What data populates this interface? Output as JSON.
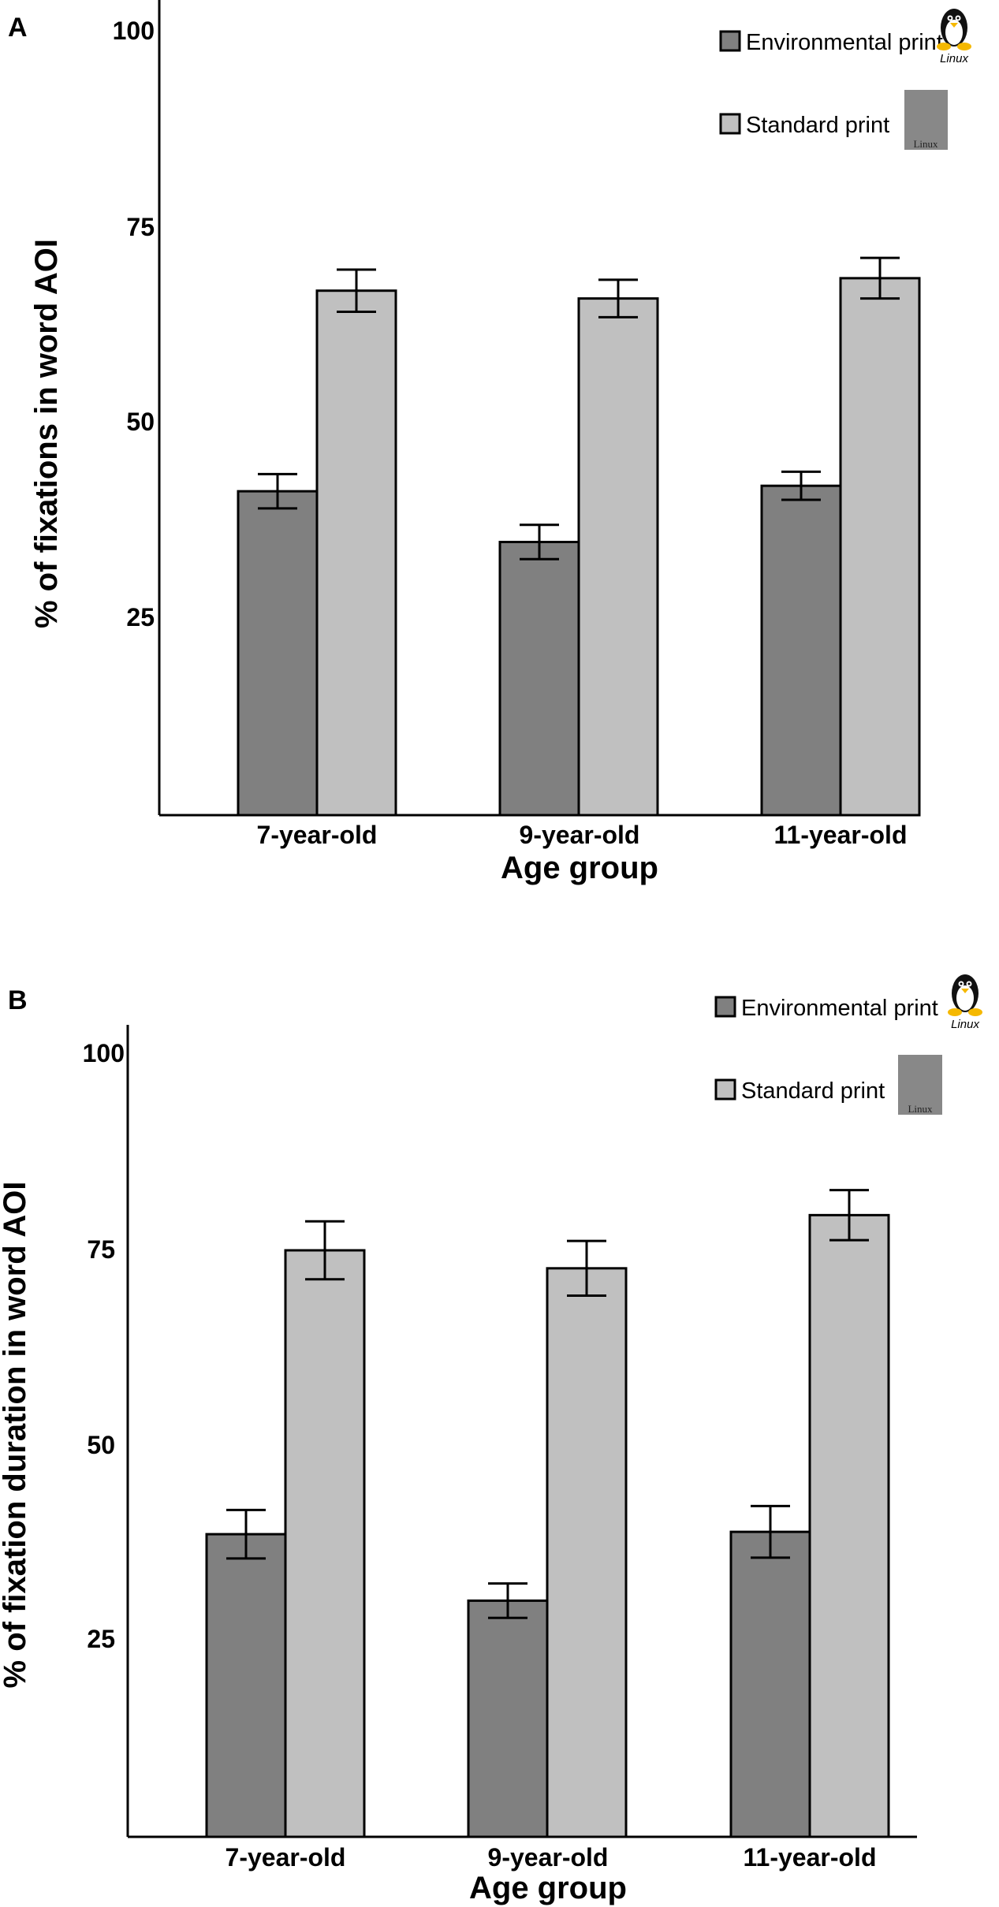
{
  "colors": {
    "environmental": "#808080",
    "standard": "#c0c0c0",
    "logo_gray": "#888888"
  },
  "legend": {
    "environmental": "Environmental print",
    "standard": "Standard print"
  },
  "logo": {
    "linux_caption": "Linux",
    "linux_box_caption": "Linux"
  },
  "chart_data": [
    {
      "panel_label": "A",
      "type": "bar",
      "title": "",
      "xlabel": "Age group",
      "ylabel": "% of fixations in word AOI",
      "categories": [
        "7-year-old",
        "9-year-old",
        "11-year-old"
      ],
      "yticks": [
        "25",
        "50",
        "75",
        "100"
      ],
      "ylim": [
        0,
        100
      ],
      "series": [
        {
          "name": "Environmental print",
          "values": [
            41.5,
            35,
            42.2
          ],
          "errors": [
            2.2,
            2.2,
            1.8
          ]
        },
        {
          "name": "Standard print",
          "values": [
            67.2,
            66.2,
            68.8
          ],
          "errors": [
            2.7,
            2.4,
            2.6
          ]
        }
      ]
    },
    {
      "panel_label": "B",
      "type": "bar",
      "title": "",
      "xlabel": "Age group",
      "ylabel": "% of fixation duration in word AOI",
      "categories": [
        "7-year-old",
        "9-year-old",
        "11-year-old"
      ],
      "yticks": [
        "25",
        "50",
        "75",
        "100"
      ],
      "ylim": [
        0,
        100
      ],
      "series": [
        {
          "name": "Environmental print",
          "values": [
            38.7,
            30.2,
            39
          ],
          "errors": [
            3.1,
            2.2,
            3.3
          ]
        },
        {
          "name": "Standard print",
          "values": [
            75,
            72.7,
            79.5
          ],
          "errors": [
            3.7,
            3.5,
            3.2
          ]
        }
      ]
    }
  ]
}
